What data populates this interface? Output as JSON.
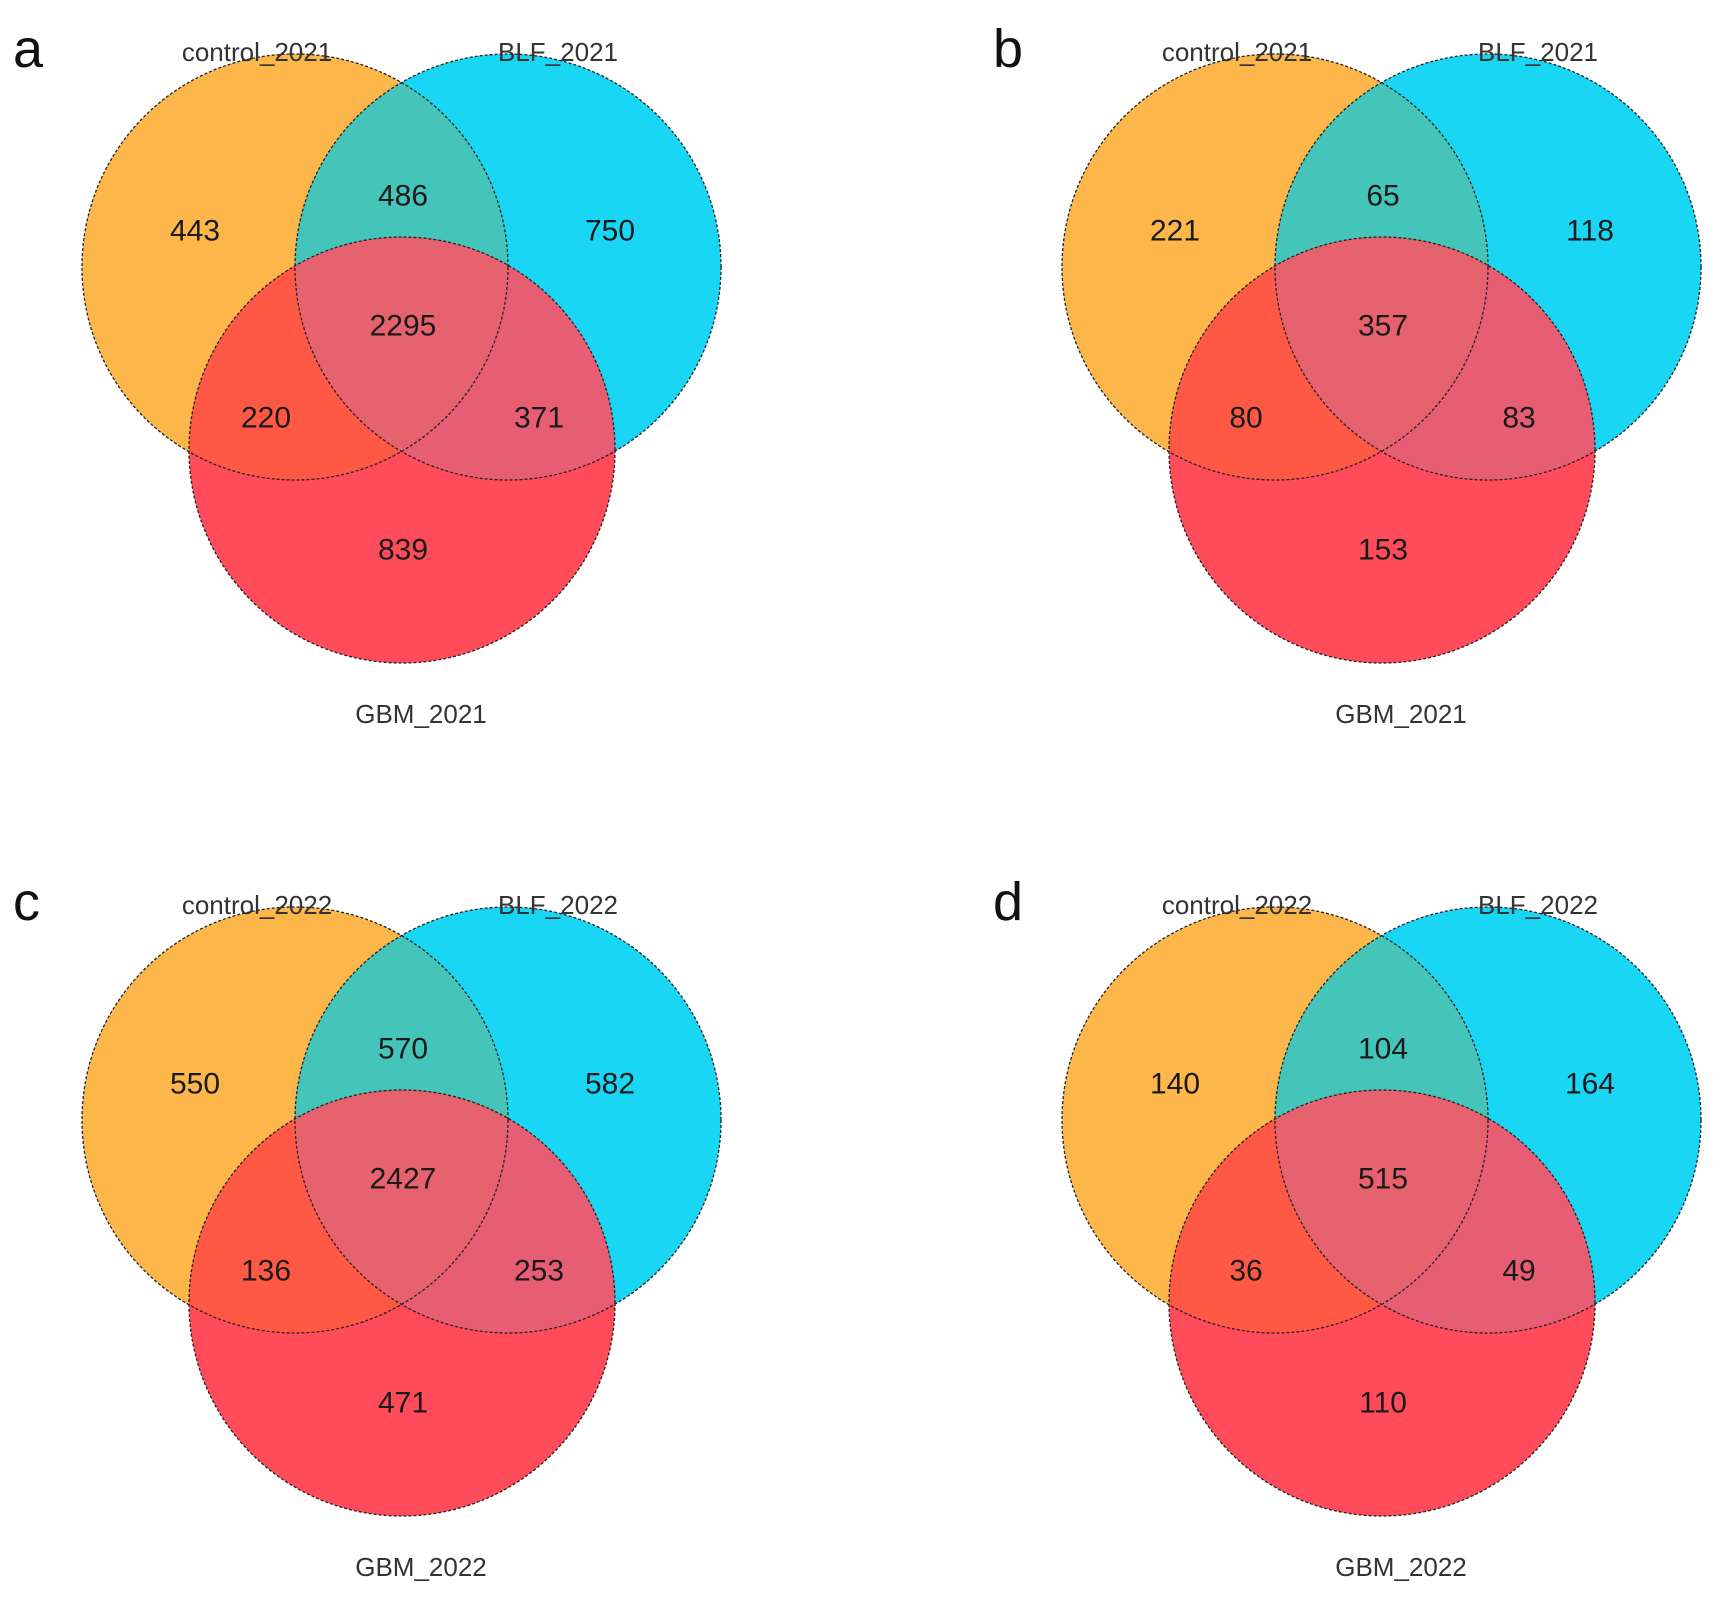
{
  "colors": {
    "control": "#fdb64a",
    "blf": "#19d6f5",
    "gbm": "#ff4b5a",
    "control_blf": "#45c4b9",
    "control_gbm": "#ff5844",
    "blf_gbm": "#e65d74",
    "all": "#e6626e"
  },
  "panels": [
    {
      "letter": "a",
      "sets": {
        "control": "control_2021",
        "blf": "BLF_2021",
        "gbm": "GBM_2021"
      },
      "regions": {
        "control_only": "443",
        "control_blf": "486",
        "blf_only": "750",
        "all": "2295",
        "control_gbm": "220",
        "blf_gbm": "371",
        "gbm_only": "839"
      }
    },
    {
      "letter": "b",
      "sets": {
        "control": "control_2021",
        "blf": "BLF_2021",
        "gbm": "GBM_2021"
      },
      "regions": {
        "control_only": "221",
        "control_blf": "65",
        "blf_only": "118",
        "all": "357",
        "control_gbm": "80",
        "blf_gbm": "83",
        "gbm_only": "153"
      }
    },
    {
      "letter": "c",
      "sets": {
        "control": "control_2022",
        "blf": "BLF_2022",
        "gbm": "GBM_2022"
      },
      "regions": {
        "control_only": "550",
        "control_blf": "570",
        "blf_only": "582",
        "all": "2427",
        "control_gbm": "136",
        "blf_gbm": "253",
        "gbm_only": "471"
      }
    },
    {
      "letter": "d",
      "sets": {
        "control": "control_2022",
        "blf": "BLF_2022",
        "gbm": "GBM_2022"
      },
      "regions": {
        "control_only": "140",
        "control_blf": "104",
        "blf_only": "164",
        "all": "515",
        "control_gbm": "36",
        "blf_gbm": "49",
        "gbm_only": "110"
      }
    }
  ]
}
